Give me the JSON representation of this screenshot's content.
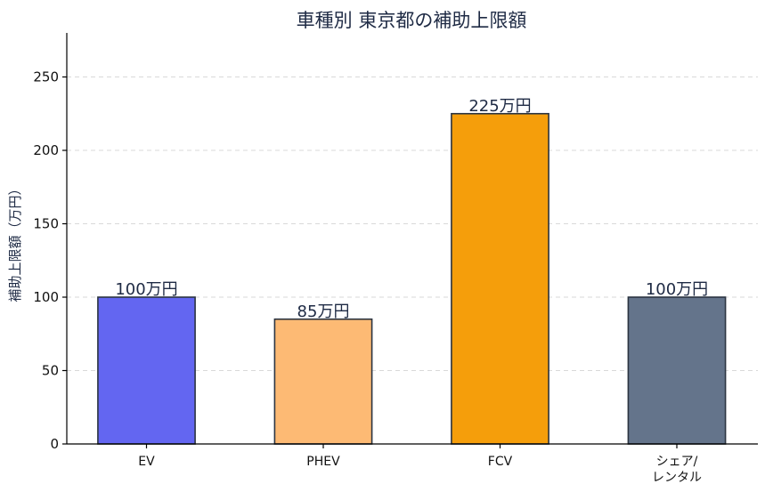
{
  "chart_data": {
    "type": "bar",
    "title": "車種別 東京都の補助上限額",
    "xlabel": "",
    "ylabel": "補助上限額（万円）",
    "ylim": [
      0,
      280
    ],
    "yticks": [
      0,
      50,
      100,
      150,
      200,
      250
    ],
    "grid": true,
    "categories": [
      [
        "EV"
      ],
      [
        "PHEV"
      ],
      [
        "FCV"
      ],
      [
        "シェア/",
        "レンタル"
      ]
    ],
    "values": [
      100,
      85,
      225,
      100
    ],
    "data_labels": [
      "100万円",
      "85万円",
      "225万円",
      "100万円"
    ],
    "colors": [
      "#6366f1",
      "#fdba74",
      "#f59e0b",
      "#64748b"
    ]
  }
}
